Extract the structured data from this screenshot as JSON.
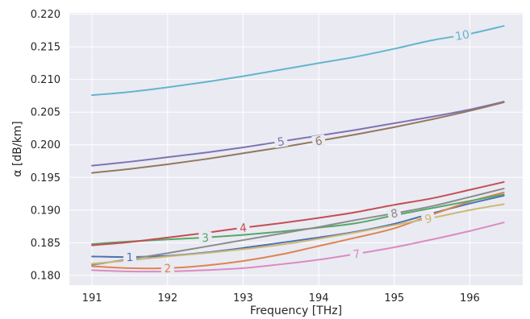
{
  "chart_data": {
    "type": "line",
    "title": "",
    "xlabel": "Frequency [THz]",
    "ylabel": "α  [dB/km]",
    "xlim": [
      190.7,
      196.7
    ],
    "ylim": [
      0.1785,
      0.2202
    ],
    "x_ticks": [
      "191",
      "192",
      "193",
      "194",
      "195",
      "196"
    ],
    "x_tick_values": [
      191,
      192,
      193,
      194,
      195,
      196
    ],
    "y_ticks": [
      "0.180",
      "0.185",
      "0.190",
      "0.195",
      "0.200",
      "0.205",
      "0.210",
      "0.215",
      "0.220"
    ],
    "y_tick_values": [
      0.18,
      0.185,
      0.19,
      0.195,
      0.2,
      0.205,
      0.21,
      0.215,
      0.22
    ],
    "grid": true,
    "legend": "inline labels",
    "background_color": "#eaeaf2",
    "grid_color": "#ffffff",
    "x": [
      191.0,
      191.5,
      192.0,
      192.5,
      193.0,
      193.5,
      194.0,
      194.5,
      195.0,
      195.5,
      196.0,
      196.45
    ],
    "series": [
      {
        "name": "1",
        "color": "#4c72b0",
        "label_x": 191.5,
        "values": [
          0.1829,
          0.1828,
          0.183,
          0.1835,
          0.1842,
          0.185,
          0.1858,
          0.1867,
          0.1879,
          0.1895,
          0.191,
          0.1922
        ]
      },
      {
        "name": "2",
        "color": "#dd8452",
        "label_x": 192.0,
        "values": [
          0.1814,
          0.1811,
          0.1811,
          0.1815,
          0.1822,
          0.1832,
          0.1845,
          0.1858,
          0.1872,
          0.1893,
          0.1913,
          0.1927
        ]
      },
      {
        "name": "3",
        "color": "#55a868",
        "label_x": 192.5,
        "values": [
          0.1848,
          0.1852,
          0.1855,
          0.1858,
          0.1862,
          0.1867,
          0.1873,
          0.188,
          0.1892,
          0.1903,
          0.1914,
          0.1924
        ]
      },
      {
        "name": "4",
        "color": "#c44e52",
        "label_x": 193.0,
        "values": [
          0.1846,
          0.1851,
          0.1858,
          0.1865,
          0.1873,
          0.188,
          0.1888,
          0.1897,
          0.1908,
          0.1918,
          0.1931,
          0.1943
        ]
      },
      {
        "name": "5",
        "color": "#8172b3",
        "label_x": 193.5,
        "values": [
          0.1968,
          0.1974,
          0.1981,
          0.1988,
          0.1996,
          0.2005,
          0.2014,
          0.2023,
          0.2033,
          0.2043,
          0.2054,
          0.2066
        ]
      },
      {
        "name": "6",
        "color": "#937860",
        "label_x": 194.0,
        "values": [
          0.1957,
          0.1963,
          0.197,
          0.1978,
          0.1987,
          0.1996,
          0.2006,
          0.2016,
          0.2027,
          0.2039,
          0.2052,
          0.2065
        ]
      },
      {
        "name": "7",
        "color": "#da8bc3",
        "label_x": 194.5,
        "values": [
          0.1808,
          0.1806,
          0.1806,
          0.1808,
          0.1811,
          0.1817,
          0.1824,
          0.1833,
          0.1843,
          0.1855,
          0.1868,
          0.1881
        ]
      },
      {
        "name": "8",
        "color": "#8c8c8c",
        "label_x": 195.0,
        "values": [
          0.1816,
          0.1825,
          0.1834,
          0.1844,
          0.1854,
          0.1864,
          0.1874,
          0.1885,
          0.1895,
          0.1906,
          0.192,
          0.1933
        ]
      },
      {
        "name": "9",
        "color": "#ccb974",
        "label_x": 195.45,
        "values": [
          0.1818,
          0.1823,
          0.1829,
          0.1834,
          0.184,
          0.1847,
          0.1856,
          0.1866,
          0.1877,
          0.1888,
          0.19,
          0.1909
        ]
      },
      {
        "name": "10",
        "color": "#64b5cd",
        "label_x": 195.9,
        "values": [
          0.2076,
          0.2081,
          0.2088,
          0.2096,
          0.2105,
          0.2115,
          0.2125,
          0.2135,
          0.2147,
          0.216,
          0.217,
          0.2182
        ]
      }
    ]
  }
}
